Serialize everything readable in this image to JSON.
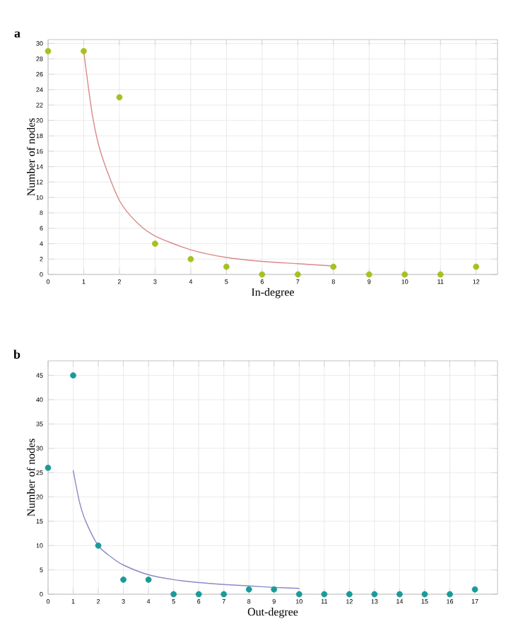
{
  "chart_data": [
    {
      "type": "scatter",
      "title": "a",
      "xlabel": "In-degree",
      "ylabel": "Number of nodes",
      "xlim": [
        0,
        12.6
      ],
      "ylim": [
        0,
        30.5
      ],
      "xticks": [
        0,
        1,
        2,
        3,
        4,
        5,
        6,
        7,
        8,
        9,
        10,
        11,
        12
      ],
      "yticks": [
        0,
        2,
        4,
        6,
        8,
        10,
        12,
        14,
        16,
        18,
        20,
        22,
        24,
        26,
        28,
        30
      ],
      "grid": true,
      "series": [
        {
          "marker": "circle",
          "color": "#a8c020",
          "x": [
            0,
            1,
            2,
            3,
            4,
            5,
            6,
            7,
            8,
            9,
            10,
            11,
            12
          ],
          "values": [
            29,
            29,
            23,
            4,
            2,
            1,
            0,
            0,
            1,
            0,
            0,
            0,
            1
          ]
        },
        {
          "type": "line",
          "color": "#d98a8a",
          "x": [
            1,
            1.25,
            1.5,
            2,
            2.5,
            3,
            4,
            5,
            6,
            7,
            8
          ],
          "values": [
            29,
            20.5,
            15.5,
            9.6,
            6.7,
            5.0,
            3.2,
            2.2,
            1.7,
            1.4,
            1.1
          ]
        }
      ]
    },
    {
      "type": "scatter",
      "title": "b",
      "xlabel": "Out-degree",
      "ylabel": "Number of nodes",
      "xlim": [
        0,
        17.9
      ],
      "ylim": [
        0,
        48
      ],
      "xticks": [
        0,
        1,
        2,
        3,
        4,
        5,
        6,
        7,
        8,
        9,
        10,
        11,
        12,
        13,
        14,
        15,
        16,
        17
      ],
      "yticks": [
        0,
        5,
        10,
        15,
        20,
        25,
        30,
        35,
        40,
        45
      ],
      "grid": true,
      "series": [
        {
          "marker": "circle",
          "color": "#1a9a9a",
          "x": [
            0,
            1,
            2,
            3,
            4,
            5,
            6,
            7,
            8,
            9,
            10,
            11,
            12,
            13,
            14,
            15,
            16,
            17
          ],
          "values": [
            26,
            45,
            10,
            3,
            3,
            0,
            0,
            0,
            1,
            1,
            0,
            0,
            0,
            0,
            0,
            0,
            0,
            1
          ]
        },
        {
          "type": "line",
          "color": "#8a8ac8",
          "x": [
            1,
            1.25,
            1.5,
            2,
            2.5,
            3,
            4,
            5,
            6,
            7,
            8,
            9,
            10
          ],
          "values": [
            25.5,
            19,
            15,
            10,
            7.7,
            6.0,
            4.0,
            3.0,
            2.4,
            2.0,
            1.7,
            1.4,
            1.2
          ]
        }
      ]
    }
  ]
}
